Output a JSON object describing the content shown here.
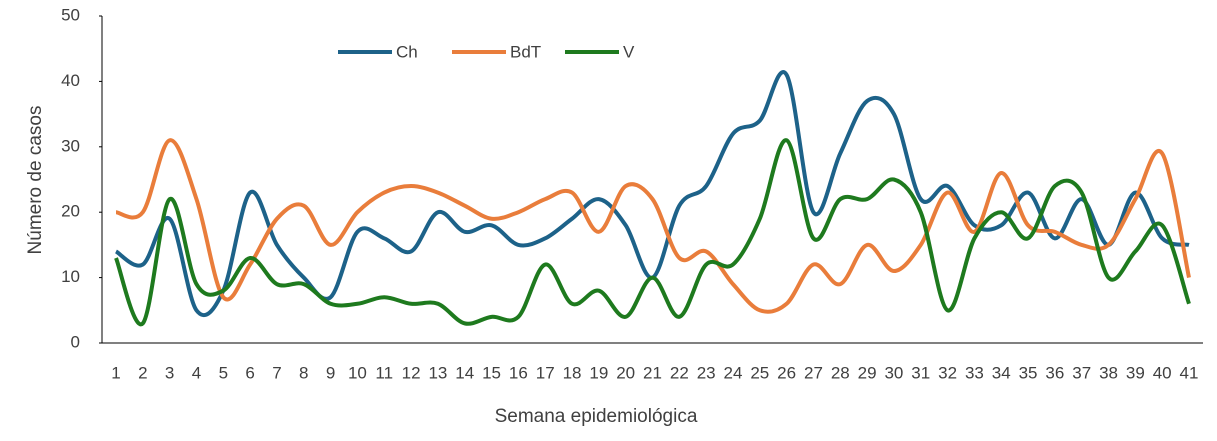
{
  "chart_data": {
    "type": "line",
    "x_label": "Semana epidemiológica",
    "y_label": "Número de casos",
    "categories": [
      "1",
      "2",
      "3",
      "4",
      "5",
      "6",
      "7",
      "8",
      "9",
      "10",
      "11",
      "12",
      "13",
      "14",
      "15",
      "16",
      "17",
      "18",
      "19",
      "20",
      "21",
      "22",
      "23",
      "24",
      "25",
      "26",
      "27",
      "28",
      "29",
      "30",
      "31",
      "32",
      "33",
      "34",
      "35",
      "36",
      "37",
      "38",
      "39",
      "40",
      "41"
    ],
    "series": [
      {
        "name": "Ch",
        "color": "#1d6289",
        "values": [
          14,
          12,
          19,
          5,
          8,
          23,
          15,
          10,
          7,
          17,
          16,
          14,
          20,
          17,
          18,
          15,
          16,
          19,
          22,
          18,
          10,
          21,
          24,
          32,
          34,
          41,
          20,
          29,
          37,
          35,
          22,
          24,
          18,
          18,
          23,
          16,
          22,
          15,
          23,
          16,
          15
        ]
      },
      {
        "name": "BdT",
        "color": "#e97d3b",
        "values": [
          20,
          20,
          31,
          22,
          7,
          12,
          19,
          21,
          15,
          20,
          23,
          24,
          23,
          21,
          19,
          20,
          22,
          23,
          17,
          24,
          22,
          13,
          14,
          9,
          5,
          6,
          12,
          9,
          15,
          11,
          15,
          23,
          17,
          26,
          18,
          17,
          15,
          15,
          22,
          29,
          10
        ]
      },
      {
        "name": "V",
        "color": "#1e7a1e",
        "values": [
          13,
          3,
          22,
          9,
          8,
          13,
          9,
          9,
          6,
          6,
          7,
          6,
          6,
          3,
          4,
          4,
          12,
          6,
          8,
          4,
          10,
          4,
          12,
          12,
          19,
          31,
          16,
          22,
          22,
          25,
          20,
          5,
          16,
          20,
          16,
          24,
          23,
          10,
          14,
          18,
          6
        ]
      }
    ],
    "ylim": [
      0,
      50
    ],
    "yticks": [
      0,
      10,
      20,
      30,
      40,
      50
    ],
    "legend": "top",
    "smooth": true,
    "grid": false
  }
}
